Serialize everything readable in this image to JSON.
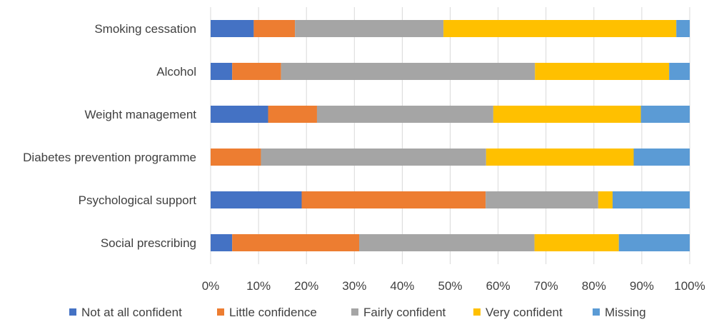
{
  "chart_data": {
    "type": "bar",
    "orientation": "horizontal",
    "stacked": "100%",
    "categories": [
      "Smoking cessation",
      "Alcohol",
      "Weight management",
      "Diabetes prevention programme",
      "Psychological support",
      "Social prescribing"
    ],
    "series": [
      {
        "name": "Not at all confident",
        "color": "#4472C4",
        "values": [
          9,
          4.5,
          12,
          0,
          19,
          4.5
        ]
      },
      {
        "name": "Little confidence",
        "color": "#ED7D31",
        "values": [
          8.6,
          10.2,
          10.2,
          10.5,
          38.4,
          26.5
        ]
      },
      {
        "name": "Fairly confident",
        "color": "#A5A5A5",
        "values": [
          31,
          53,
          36.8,
          47,
          23.5,
          36.6
        ]
      },
      {
        "name": "Very confident",
        "color": "#FFC000",
        "values": [
          48.6,
          28,
          30.8,
          30.8,
          3,
          17.6
        ]
      },
      {
        "name": "Missing",
        "color": "#5B9BD5",
        "values": [
          2.8,
          4.3,
          10.2,
          11.7,
          16.1,
          14.8
        ]
      }
    ],
    "x_ticks": [
      "0%",
      "10%",
      "20%",
      "30%",
      "40%",
      "50%",
      "60%",
      "70%",
      "80%",
      "90%",
      "100%"
    ],
    "xlim": [
      0,
      100
    ],
    "grid": "vertical",
    "legend_position": "bottom"
  }
}
